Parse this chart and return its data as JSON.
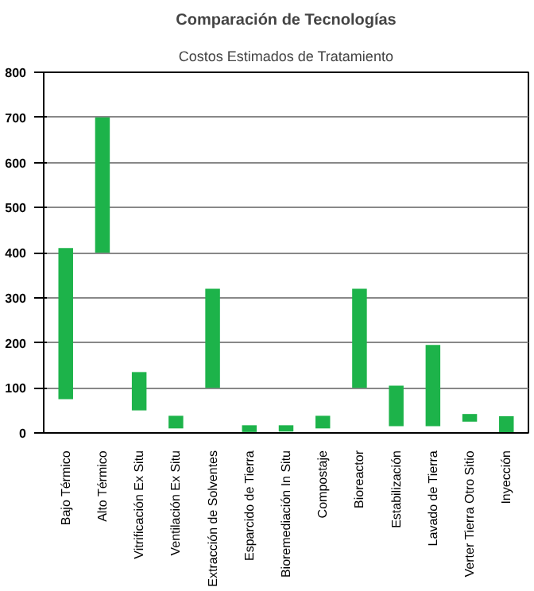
{
  "chart_data": {
    "type": "bar",
    "title": "Comparación de Tecnologías",
    "subtitle": "Costos Estimados de Tratamiento",
    "categories": [
      "Bajo Térmico",
      "Alto Térmico",
      "Vitrificación Ex Situ",
      "Ventilación Ex Situ",
      "Extracción de Solventes",
      "Esparcido de Tierra",
      "Bioremediación In Situ",
      "Compostaje",
      "Bioreactor",
      "Estabilización",
      "Lavado de Tierra",
      "Verter Tierra Otro Sitio",
      "Inyección"
    ],
    "base": [
      75,
      400,
      50,
      10,
      100,
      2,
      3,
      10,
      100,
      15,
      15,
      25,
      0
    ],
    "values": [
      335,
      300,
      85,
      28,
      220,
      15,
      14,
      28,
      220,
      90,
      180,
      17,
      37
    ],
    "color": "#1db34a",
    "ylim": [
      0,
      800
    ],
    "yticks": [
      0,
      100,
      200,
      300,
      400,
      500,
      600,
      700,
      800
    ],
    "grid": "y"
  }
}
